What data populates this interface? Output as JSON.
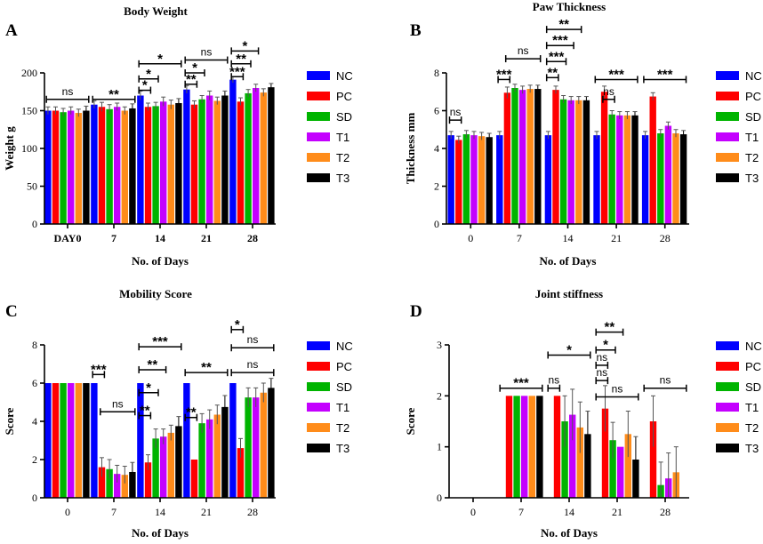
{
  "series_names": [
    "NC",
    "PC",
    "SD",
    "T1",
    "T2",
    "T3"
  ],
  "series_colors": [
    "#0000ff",
    "#ff0000",
    "#00b400",
    "#c400ff",
    "#ff8c1a",
    "#000000"
  ],
  "chart_data": [
    {
      "panel": "A",
      "type": "bar",
      "title": "Body Weight",
      "xlabel": "No. of Days",
      "ylabel": "Weight g",
      "categories": [
        "DAY0",
        "7",
        "14",
        "21",
        "28"
      ],
      "category_label_bold": true,
      "ylim": [
        0,
        200
      ],
      "yticks": [
        "0",
        "50",
        "100",
        "150",
        "200"
      ],
      "series": [
        {
          "name": "NC",
          "values": [
            150,
            158,
            170,
            178,
            191
          ],
          "errors": [
            5,
            5,
            6,
            5,
            4
          ]
        },
        {
          "name": "PC",
          "values": [
            150,
            155,
            155,
            158,
            162
          ],
          "errors": [
            5,
            6,
            5,
            5,
            5
          ]
        },
        {
          "name": "SD",
          "values": [
            148,
            152,
            156,
            165,
            173
          ],
          "errors": [
            5,
            6,
            5,
            5,
            5
          ]
        },
        {
          "name": "T1",
          "values": [
            150,
            155,
            162,
            170,
            180
          ],
          "errors": [
            5,
            5,
            6,
            6,
            5
          ]
        },
        {
          "name": "T2",
          "values": [
            147,
            150,
            158,
            163,
            174
          ],
          "errors": [
            5,
            5,
            6,
            5,
            5
          ]
        },
        {
          "name": "T3",
          "values": [
            150,
            153,
            160,
            170,
            181
          ],
          "errors": [
            6,
            6,
            6,
            6,
            5
          ]
        }
      ],
      "significance": [
        {
          "label": "ns",
          "group": 0,
          "from": 0,
          "to": 5,
          "value": 165
        },
        {
          "label": "**",
          "group": 1,
          "from": 0,
          "to": 5,
          "value": 165
        },
        {
          "label": "*",
          "group": 2,
          "from": 0,
          "to": 1,
          "value": 177
        },
        {
          "label": "*",
          "group": 2,
          "from": 0,
          "to": 2,
          "value": 192
        },
        {
          "label": "*",
          "group": 2,
          "from": 0,
          "to": 5,
          "value": 212
        },
        {
          "label": "**",
          "group": 3,
          "from": 0,
          "to": 1,
          "value": 185
        },
        {
          "label": "*",
          "group": 3,
          "from": 0,
          "to": 2,
          "value": 200
        },
        {
          "label": "ns",
          "group": 3,
          "from": 0,
          "to": 5,
          "value": 217
        },
        {
          "label": "***",
          "group": 4,
          "from": 0,
          "to": 1,
          "value": 195
        },
        {
          "label": "**",
          "group": 4,
          "from": 0,
          "to": 2,
          "value": 212
        },
        {
          "label": "*",
          "group": 4,
          "from": 0,
          "to": 3,
          "value": 229
        }
      ]
    },
    {
      "panel": "B",
      "type": "bar",
      "title": "Paw Thickness",
      "xlabel": "No. of Days",
      "ylabel": "Thickness mm",
      "categories": [
        "0",
        "7",
        "14",
        "21",
        "28"
      ],
      "category_label_bold": false,
      "ylim": [
        0,
        8
      ],
      "yticks": [
        "0",
        "2",
        "4",
        "6",
        "8"
      ],
      "series": [
        {
          "name": "NC",
          "values": [
            4.7,
            4.7,
            4.7,
            4.7,
            4.7
          ],
          "errors": [
            0.2,
            0.2,
            0.2,
            0.2,
            0.2
          ]
        },
        {
          "name": "PC",
          "values": [
            4.45,
            6.95,
            7.1,
            7.0,
            6.75
          ],
          "errors": [
            0.2,
            0.3,
            0.2,
            0.3,
            0.2
          ]
        },
        {
          "name": "SD",
          "values": [
            4.75,
            7.2,
            6.6,
            5.8,
            4.8
          ],
          "errors": [
            0.2,
            0.2,
            0.2,
            0.2,
            0.2
          ]
        },
        {
          "name": "T1",
          "values": [
            4.7,
            7.1,
            6.55,
            5.75,
            5.2
          ],
          "errors": [
            0.2,
            0.2,
            0.2,
            0.2,
            0.2
          ]
        },
        {
          "name": "T2",
          "values": [
            4.65,
            7.15,
            6.55,
            5.75,
            4.8
          ],
          "errors": [
            0.2,
            0.2,
            0.2,
            0.2,
            0.2
          ]
        },
        {
          "name": "T3",
          "values": [
            4.6,
            7.15,
            6.55,
            5.75,
            4.75
          ],
          "errors": [
            0.2,
            0.2,
            0.2,
            0.2,
            0.2
          ]
        }
      ],
      "significance": [
        {
          "label": "ns",
          "group": 0,
          "from": 0,
          "to": 1,
          "value": 5.5
        },
        {
          "label": "***",
          "group": 1,
          "from": 0,
          "to": 1,
          "value": 7.65
        },
        {
          "label": "ns",
          "group": 1,
          "from": 1,
          "to": 5,
          "value": 8.75
        },
        {
          "label": "**",
          "group": 2,
          "from": 0,
          "to": 1,
          "value": 7.75
        },
        {
          "label": "***",
          "group": 2,
          "from": 0,
          "to": 2,
          "value": 8.6
        },
        {
          "label": "***",
          "group": 2,
          "from": 0,
          "to": 3,
          "value": 9.45
        },
        {
          "label": "**",
          "group": 2,
          "from": 0,
          "to": 4,
          "value": 10.3
        },
        {
          "label": "ns",
          "group": 3,
          "from": 1,
          "to": 2,
          "value": 6.6
        },
        {
          "label": "***",
          "group": 3,
          "from": 0,
          "to": 5,
          "value": 7.65
        },
        {
          "label": "***",
          "group": 4,
          "from": 0,
          "to": 5,
          "value": 7.65
        }
      ]
    },
    {
      "panel": "C",
      "type": "bar",
      "title": "Mobility Score",
      "xlabel": "No. of Days",
      "ylabel": "Score",
      "categories": [
        "0",
        "7",
        "14",
        "21",
        "28"
      ],
      "category_label_bold": false,
      "ylim": [
        0,
        8
      ],
      "yticks": [
        "0",
        "2",
        "4",
        "6",
        "8"
      ],
      "series": [
        {
          "name": "NC",
          "values": [
            6,
            6,
            6,
            6,
            6
          ],
          "errors": [
            0,
            0,
            0,
            0,
            0
          ]
        },
        {
          "name": "PC",
          "values": [
            6,
            1.6,
            1.85,
            2.0,
            2.6
          ],
          "errors": [
            0,
            0.5,
            0.4,
            0,
            0.5
          ]
        },
        {
          "name": "SD",
          "values": [
            6,
            1.5,
            3.1,
            3.9,
            5.25
          ],
          "errors": [
            0,
            0.5,
            0.5,
            0.5,
            0.5
          ]
        },
        {
          "name": "T1",
          "values": [
            6,
            1.25,
            3.2,
            4.1,
            5.25
          ],
          "errors": [
            0,
            0.45,
            0.4,
            0.5,
            0.5
          ]
        },
        {
          "name": "T2",
          "values": [
            6,
            1.2,
            3.4,
            4.35,
            5.5
          ],
          "errors": [
            0,
            0.45,
            0.4,
            0.5,
            0.5
          ]
        },
        {
          "name": "T3",
          "values": [
            6,
            1.35,
            3.75,
            4.75,
            5.75
          ],
          "errors": [
            0,
            0.5,
            0.5,
            0.6,
            0.5
          ]
        }
      ],
      "significance": [
        {
          "label": "***",
          "group": 1,
          "from": 0,
          "to": 1,
          "value": 6.45
        },
        {
          "label": "ns",
          "group": 1,
          "from": 1,
          "to": 5,
          "value": 4.5
        },
        {
          "label": "**",
          "group": 2,
          "from": 0,
          "to": 1,
          "value": 4.3
        },
        {
          "label": "*",
          "group": 2,
          "from": 0,
          "to": 2,
          "value": 5.5
        },
        {
          "label": "**",
          "group": 2,
          "from": 0,
          "to": 3,
          "value": 6.7
        },
        {
          "label": "***",
          "group": 2,
          "from": 0,
          "to": 5,
          "value": 7.9
        },
        {
          "label": "**",
          "group": 3,
          "from": 0,
          "to": 1,
          "value": 4.2
        },
        {
          "label": "**",
          "group": 3,
          "from": 0,
          "to": 5,
          "value": 6.55
        },
        {
          "label": "ns",
          "group": 4,
          "from": 0,
          "to": 5,
          "value": 6.55
        },
        {
          "label": "ns",
          "group": 4,
          "from": 0,
          "to": 5,
          "value": 7.85
        },
        {
          "label": "*",
          "group": 4,
          "from": 0,
          "to": 1,
          "value": 8.8
        }
      ]
    },
    {
      "panel": "D",
      "type": "bar",
      "title": "Joint stiffness",
      "xlabel": "No. of Days",
      "ylabel": "Score",
      "categories": [
        "0",
        "7",
        "14",
        "21",
        "28"
      ],
      "category_label_bold": false,
      "ylim": [
        0,
        3
      ],
      "yticks": [
        "0",
        "1",
        "2",
        "3"
      ],
      "series": [
        {
          "name": "NC",
          "values": [
            0,
            0,
            0,
            0,
            0
          ],
          "errors": [
            0,
            0,
            0,
            0,
            0
          ]
        },
        {
          "name": "PC",
          "values": [
            0,
            2,
            2,
            1.75,
            1.5
          ],
          "errors": [
            0,
            0,
            0,
            0.45,
            0.5
          ]
        },
        {
          "name": "SD",
          "values": [
            0,
            2,
            1.5,
            1.13,
            0.25
          ],
          "errors": [
            0,
            0,
            0.5,
            0.35,
            0.45
          ]
        },
        {
          "name": "T1",
          "values": [
            0,
            2,
            1.63,
            1.0,
            0.38
          ],
          "errors": [
            0,
            0,
            0.5,
            0,
            0.5
          ]
        },
        {
          "name": "T2",
          "values": [
            0,
            2,
            1.38,
            1.25,
            0.5
          ],
          "errors": [
            0,
            0,
            0.5,
            0.45,
            0.5
          ]
        },
        {
          "name": "T3",
          "values": [
            0,
            2,
            1.25,
            0.75,
            0
          ],
          "errors": [
            0,
            0,
            0.45,
            0.45,
            0
          ]
        }
      ],
      "significance": [
        {
          "label": "***",
          "group": 1,
          "from": 0,
          "to": 5,
          "value": 2.15
        },
        {
          "label": "ns",
          "group": 2,
          "from": 0,
          "to": 1,
          "value": 2.15
        },
        {
          "label": "*",
          "group": 2,
          "from": 0,
          "to": 5,
          "value": 2.8
        },
        {
          "label": "ns",
          "group": 3,
          "from": 0,
          "to": 5,
          "value": 1.98
        },
        {
          "label": "ns",
          "group": 3,
          "from": 0,
          "to": 1,
          "value": 2.3
        },
        {
          "label": "ns",
          "group": 3,
          "from": 0,
          "to": 1,
          "value": 2.6
        },
        {
          "label": "*",
          "group": 3,
          "from": 0,
          "to": 2,
          "value": 2.9
        },
        {
          "label": "**",
          "group": 3,
          "from": 0,
          "to": 3,
          "value": 3.25
        },
        {
          "label": "ns",
          "group": 4,
          "from": 0,
          "to": 5,
          "value": 2.15
        }
      ]
    }
  ]
}
